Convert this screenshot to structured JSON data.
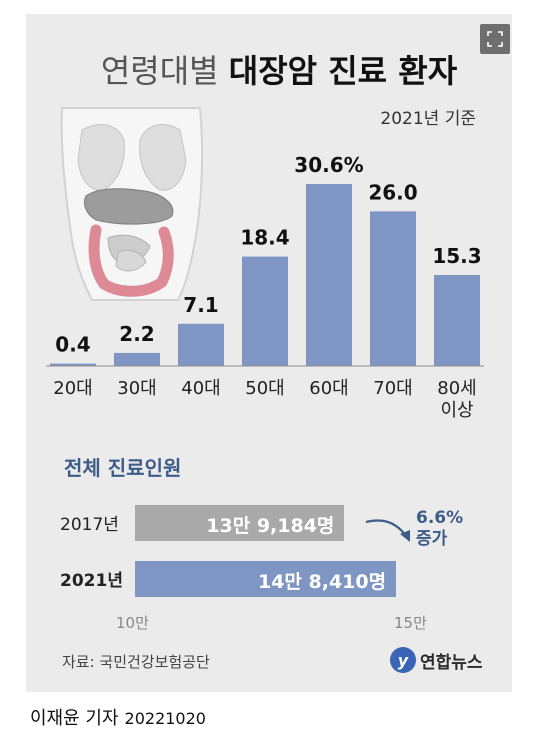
{
  "header": {
    "title_light": "연령대별",
    "title_bold": "대장암 진료 환자",
    "basis": "2021년 기준"
  },
  "icons": {
    "expand": "expand-icon",
    "illustration": "torso-intestine-illustration"
  },
  "chart_data": [
    {
      "type": "bar",
      "title": "",
      "categories": [
        "20대",
        "30대",
        "40대",
        "50대",
        "60대",
        "70대",
        "80세\n이상"
      ],
      "values": [
        0.4,
        2.2,
        7.1,
        18.4,
        30.6,
        26.0,
        15.3
      ],
      "value_labels": [
        "0.4",
        "2.2",
        "7.1",
        "18.4",
        "30.6%",
        "26.0",
        "15.3"
      ],
      "ylim": [
        0,
        30.6
      ],
      "grid": false,
      "color": "#7f96c4"
    },
    {
      "type": "bar",
      "orientation": "horizontal",
      "title": "전체 진료인원",
      "categories": [
        "2017년",
        "2021년"
      ],
      "values": [
        139184,
        148410
      ],
      "value_labels": [
        "13만 9,184명",
        "14만 8,410명"
      ],
      "x_ticks": [
        "10만",
        "15만"
      ],
      "xlim": [
        100000,
        150000
      ],
      "colors": [
        "#a9a9a9",
        "#7f96c4"
      ],
      "annotation": [
        "6.6%",
        "증가"
      ]
    }
  ],
  "footer": {
    "source": "자료: 국민건강보험공단",
    "logo_text": "연합뉴스",
    "logo_mark": "y",
    "reporter": "이재윤 기자",
    "date": "20221020"
  }
}
